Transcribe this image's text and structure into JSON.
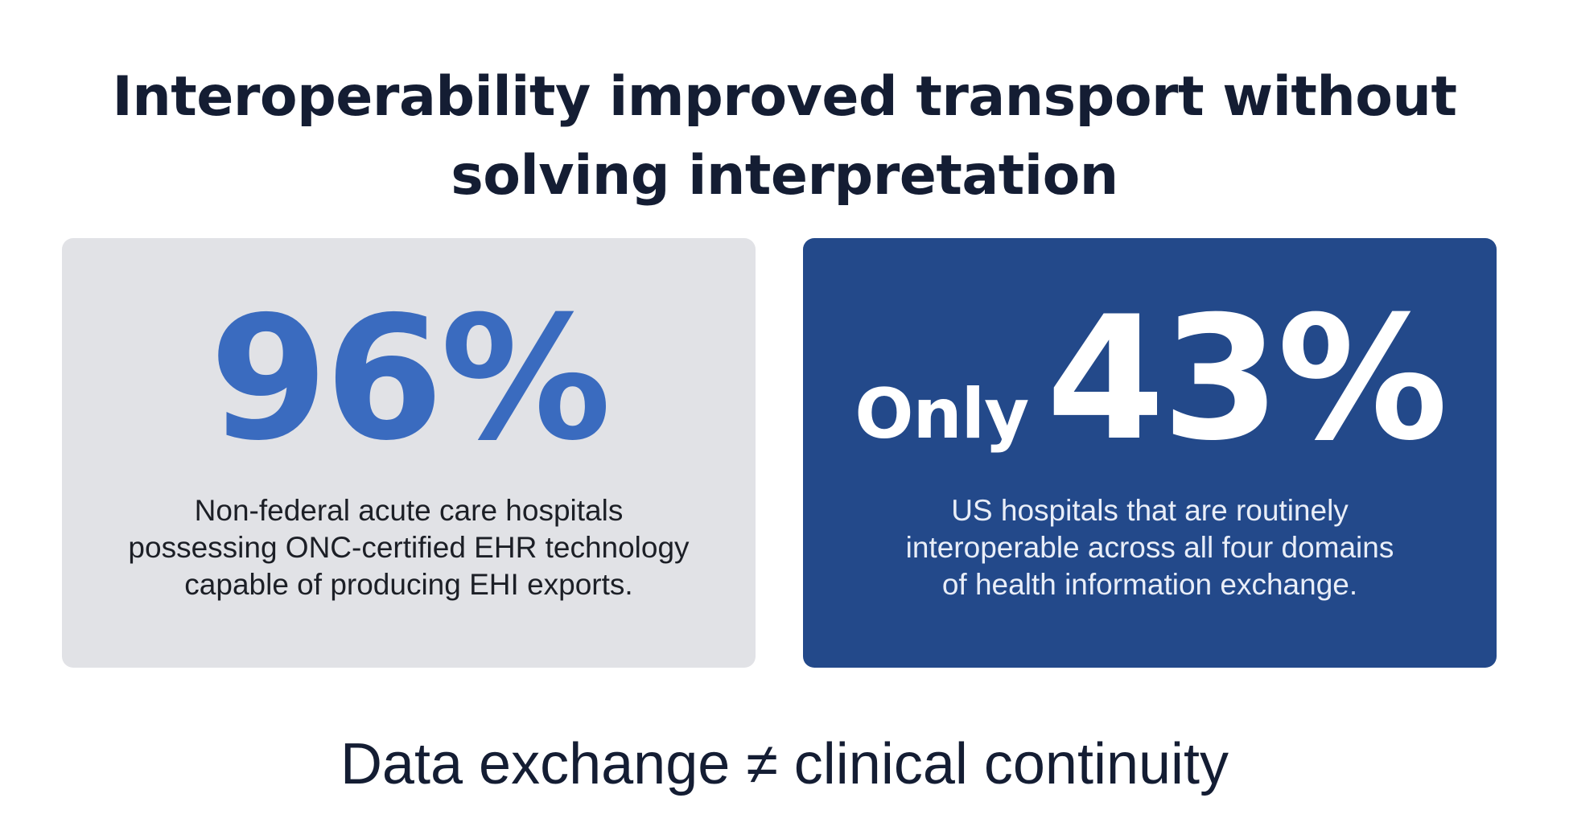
{
  "title": {
    "line1": "Interoperability improved transport without",
    "line2": "solving interpretation"
  },
  "cards": [
    {
      "prefix": "",
      "value": "96%",
      "value_color": "#3a6bbf",
      "background": "#e1e2e6",
      "description": [
        "Non-federal acute care hospitals",
        "possessing ONC-certified EHR technology",
        "capable of producing EHI exports."
      ]
    },
    {
      "prefix": "Only",
      "value": "43%",
      "value_color": "#ffffff",
      "background": "#23498a",
      "description": [
        "US hospitals that are routinely",
        "interoperable across all four domains",
        "of health information exchange."
      ]
    }
  ],
  "conclusion": "Data exchange ≠ clinical continuity",
  "colors": {
    "text_dark": "#141d33",
    "accent_blue": "#3a6bbf",
    "navy": "#23498a",
    "card_gray": "#e1e2e6"
  }
}
